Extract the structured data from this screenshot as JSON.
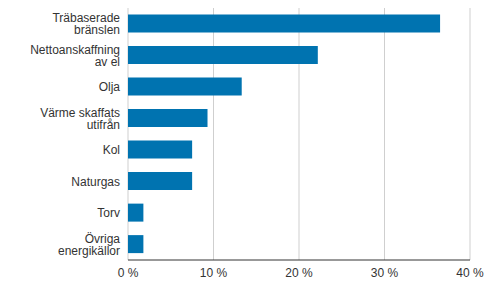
{
  "chart_data": {
    "type": "bar",
    "orientation": "horizontal",
    "categories": [
      "Träbaserade bränslen",
      "Nettoanskaffning av el",
      "Olja",
      "Värme skaffats utifrån",
      "Kol",
      "Naturgas",
      "Torv",
      "Övriga energikällor"
    ],
    "values": [
      36.5,
      22.2,
      13.3,
      9.3,
      7.5,
      7.5,
      1.8,
      1.8
    ],
    "color": "#0073b0",
    "xlim": [
      0,
      40
    ],
    "xticks": [
      {
        "value": 0,
        "label": "0 %"
      },
      {
        "value": 10,
        "label": "10 %"
      },
      {
        "value": 20,
        "label": "20 %"
      },
      {
        "value": 30,
        "label": "30 %"
      },
      {
        "value": 40,
        "label": "40 %"
      }
    ],
    "grid": true
  }
}
